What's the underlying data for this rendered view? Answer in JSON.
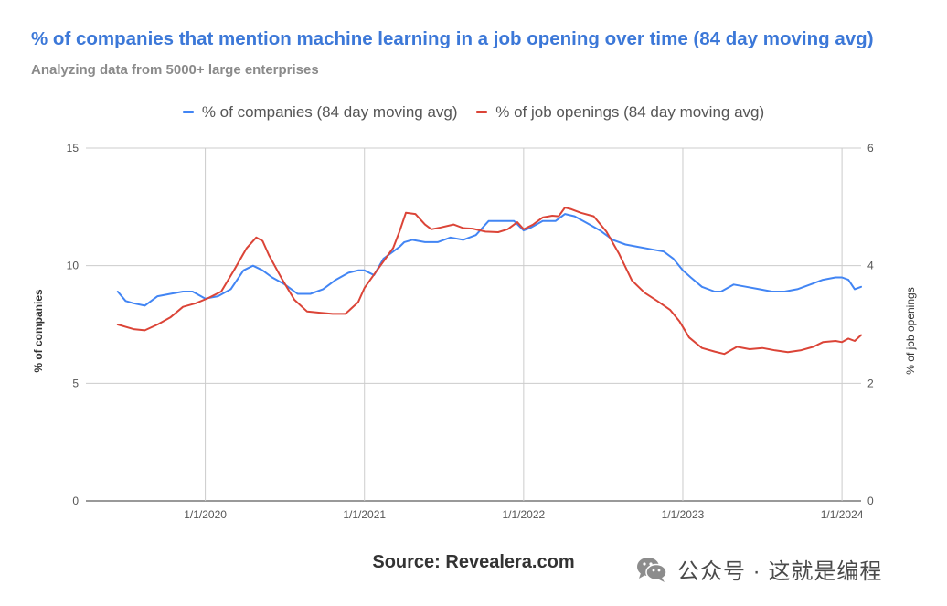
{
  "chart_data": {
    "type": "line",
    "title": "% of companies that mention machine learning in a job opening over time (84 day moving avg)",
    "subtitle": "Analyzing data from 5000+ large enterprises",
    "ylabel": "% of companies",
    "y2label": "% of job openings",
    "ylim": [
      0,
      15
    ],
    "y2lim": [
      0,
      6
    ],
    "y_ticks": [
      "0",
      "5",
      "10",
      "15"
    ],
    "y2_ticks": [
      "0",
      "2",
      "4",
      "6"
    ],
    "x_ticks": [
      "1/1/2020",
      "1/1/2021",
      "1/1/2022",
      "1/1/2023",
      "1/1/2024"
    ],
    "x_tick_years": [
      2020,
      2021,
      2022,
      2023,
      2024
    ],
    "xlim_years": [
      2019.25,
      2024.12
    ],
    "grid": true,
    "legend_position": "top",
    "series": [
      {
        "name": "% of companies (84 day moving avg)",
        "axis": "left",
        "color": "#4285f4",
        "x": [
          2019.45,
          2019.5,
          2019.55,
          2019.62,
          2019.7,
          2019.78,
          2019.86,
          2019.92,
          2020.0,
          2020.08,
          2020.16,
          2020.24,
          2020.3,
          2020.36,
          2020.42,
          2020.5,
          2020.58,
          2020.66,
          2020.74,
          2020.82,
          2020.9,
          2020.96,
          2021.0,
          2021.06,
          2021.12,
          2021.18,
          2021.22,
          2021.25,
          2021.3,
          2021.38,
          2021.46,
          2021.54,
          2021.62,
          2021.7,
          2021.78,
          2021.86,
          2021.94,
          2022.0,
          2022.04,
          2022.12,
          2022.2,
          2022.26,
          2022.32,
          2022.4,
          2022.48,
          2022.56,
          2022.64,
          2022.72,
          2022.8,
          2022.88,
          2022.94,
          2023.0,
          2023.05,
          2023.12,
          2023.2,
          2023.24,
          2023.32,
          2023.4,
          2023.48,
          2023.56,
          2023.64,
          2023.72,
          2023.8,
          2023.88,
          2023.96,
          2024.0,
          2024.04,
          2024.08,
          2024.12
        ],
        "values": [
          8.9,
          8.5,
          8.4,
          8.3,
          8.7,
          8.8,
          8.9,
          8.9,
          8.6,
          8.7,
          9.0,
          9.8,
          10.0,
          9.8,
          9.5,
          9.2,
          8.8,
          8.8,
          9.0,
          9.4,
          9.7,
          9.8,
          9.8,
          9.6,
          10.3,
          10.6,
          10.8,
          11.0,
          11.1,
          11.0,
          11.0,
          11.2,
          11.1,
          11.3,
          11.9,
          11.9,
          11.9,
          11.5,
          11.6,
          11.9,
          11.9,
          12.2,
          12.1,
          11.8,
          11.5,
          11.1,
          10.9,
          10.8,
          10.7,
          10.6,
          10.3,
          9.8,
          9.5,
          9.1,
          8.9,
          8.9,
          9.2,
          9.1,
          9.0,
          8.9,
          8.9,
          9.0,
          9.2,
          9.4,
          9.5,
          9.5,
          9.4,
          9.0,
          9.1
        ]
      },
      {
        "name": "% of job openings (84 day moving avg)",
        "axis": "right",
        "color": "#db4437",
        "x": [
          2019.45,
          2019.5,
          2019.55,
          2019.62,
          2019.7,
          2019.78,
          2019.86,
          2019.94,
          2020.02,
          2020.1,
          2020.18,
          2020.26,
          2020.32,
          2020.36,
          2020.4,
          2020.48,
          2020.56,
          2020.64,
          2020.72,
          2020.8,
          2020.88,
          2020.96,
          2021.0,
          2021.06,
          2021.1,
          2021.14,
          2021.18,
          2021.22,
          2021.26,
          2021.32,
          2021.38,
          2021.42,
          2021.48,
          2021.56,
          2021.62,
          2021.68,
          2021.76,
          2021.84,
          2021.9,
          2021.96,
          2022.0,
          2022.06,
          2022.12,
          2022.18,
          2022.22,
          2022.26,
          2022.3,
          2022.36,
          2022.44,
          2022.52,
          2022.6,
          2022.68,
          2022.76,
          2022.84,
          2022.92,
          2022.98,
          2023.04,
          2023.12,
          2023.2,
          2023.26,
          2023.34,
          2023.42,
          2023.5,
          2023.58,
          2023.66,
          2023.74,
          2023.82,
          2023.88,
          2023.96,
          2024.0,
          2024.04,
          2024.08,
          2024.12
        ],
        "values": [
          3.0,
          2.96,
          2.92,
          2.9,
          3.0,
          3.12,
          3.3,
          3.36,
          3.45,
          3.56,
          3.92,
          4.3,
          4.48,
          4.42,
          4.18,
          3.78,
          3.42,
          3.22,
          3.2,
          3.18,
          3.18,
          3.38,
          3.62,
          3.85,
          4.0,
          4.15,
          4.3,
          4.58,
          4.9,
          4.88,
          4.7,
          4.62,
          4.65,
          4.7,
          4.64,
          4.63,
          4.58,
          4.57,
          4.62,
          4.74,
          4.62,
          4.7,
          4.82,
          4.85,
          4.84,
          4.99,
          4.96,
          4.9,
          4.84,
          4.58,
          4.2,
          3.75,
          3.54,
          3.4,
          3.25,
          3.05,
          2.78,
          2.6,
          2.54,
          2.5,
          2.62,
          2.58,
          2.6,
          2.56,
          2.53,
          2.56,
          2.62,
          2.7,
          2.72,
          2.7,
          2.76,
          2.72,
          2.82
        ]
      }
    ]
  },
  "source": "Source: Revealera.com",
  "watermark": {
    "text": "公众号 · 这就是编程",
    "icon": "wechat-icon"
  }
}
